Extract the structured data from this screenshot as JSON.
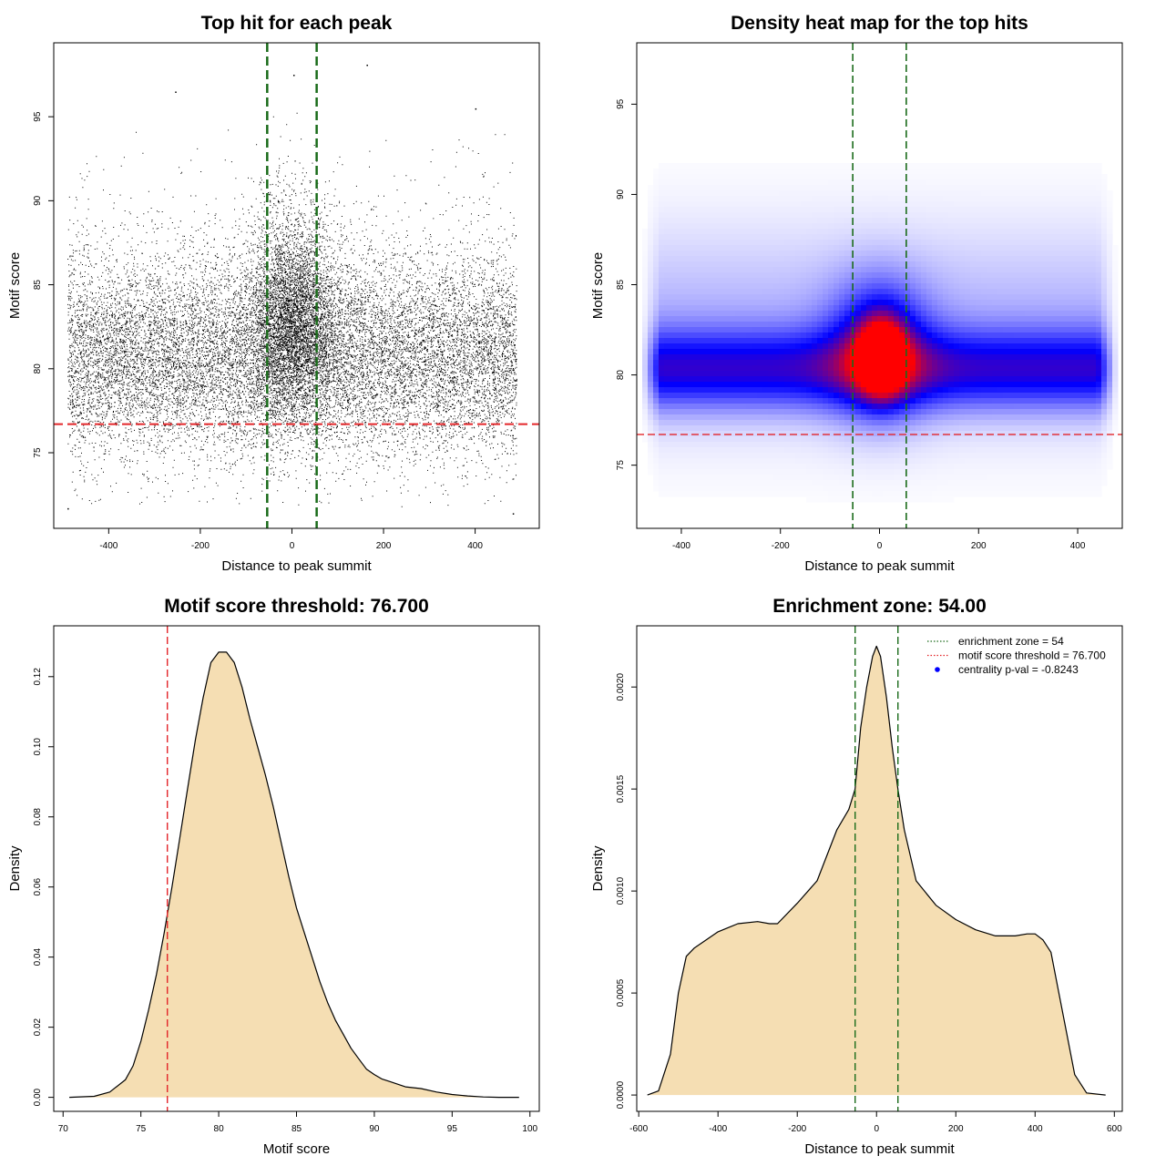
{
  "colors": {
    "threshold_line": "#e3262a",
    "zone_line": "#1a6b1a",
    "density_fill": "#f5deb3",
    "heat_low": "#ffffff",
    "heat_mid": "#0000ff",
    "heat_high": "#ff0000",
    "legend_point": "#0000ff"
  },
  "chart_data": [
    {
      "type": "scatter",
      "title": "Top hit for each peak",
      "xlabel": "Distance to peak summit",
      "ylabel": "Motif score",
      "xlim": [
        -520,
        540
      ],
      "ylim": [
        70.5,
        99.4
      ],
      "xticks": [
        -400,
        -200,
        0,
        200,
        400
      ],
      "yticks": [
        75,
        80,
        85,
        90,
        95
      ],
      "x_range_points": [
        -490,
        490
      ],
      "score_distribution": {
        "background_mode": 80.5,
        "central_mode": 82.5,
        "central_width": 50
      },
      "threshold": 76.7,
      "zone": [
        -54,
        54
      ],
      "extreme_points": [
        {
          "x": 163,
          "y": 98.1
        },
        {
          "x": 3,
          "y": 97.5
        },
        {
          "x": -255,
          "y": 96.5
        },
        {
          "x": 400,
          "y": 95.5
        },
        {
          "x": -490,
          "y": 71.7
        },
        {
          "x": 482,
          "y": 71.4
        }
      ]
    },
    {
      "type": "heatmap",
      "title": "Density heat map for the top hits",
      "xlabel": "Distance to peak summit",
      "ylabel": "Motif score",
      "xlim": [
        -490,
        490
      ],
      "ylim": [
        71.5,
        98.4
      ],
      "xticks": [
        -400,
        -200,
        0,
        200,
        400
      ],
      "yticks": [
        75,
        80,
        85,
        90,
        95
      ],
      "peak": {
        "x": 5,
        "y": 81
      },
      "threshold": 76.7,
      "zone": [
        -54,
        54
      ]
    },
    {
      "type": "area",
      "title": "Motif score threshold: 76.700",
      "xlabel": "Motif score",
      "ylabel": "Density",
      "xlim": [
        69.4,
        100.6
      ],
      "ylim": [
        -0.004,
        0.1345
      ],
      "xticks": [
        70,
        75,
        80,
        85,
        90,
        95,
        100
      ],
      "yticks": [
        0.0,
        0.02,
        0.04,
        0.06,
        0.08,
        0.1,
        0.12
      ],
      "ytick_labels": [
        "0.00",
        "0.02",
        "0.04",
        "0.06",
        "0.08",
        "0.10",
        "0.12"
      ],
      "threshold": 76.7,
      "x": [
        70.4,
        72,
        73,
        74,
        74.5,
        75,
        75.5,
        76,
        76.5,
        77,
        77.5,
        78,
        78.5,
        79,
        79.5,
        80,
        80.5,
        81,
        81.5,
        82,
        82.5,
        83,
        83.5,
        84,
        84.5,
        85,
        85.5,
        86,
        86.5,
        87,
        87.5,
        88,
        88.5,
        89,
        89.5,
        90,
        90.5,
        91,
        92,
        93,
        94,
        95,
        96,
        97,
        98,
        99.3
      ],
      "y": [
        0.0,
        0.0003,
        0.0015,
        0.005,
        0.009,
        0.016,
        0.025,
        0.035,
        0.047,
        0.06,
        0.074,
        0.088,
        0.102,
        0.114,
        0.124,
        0.127,
        0.127,
        0.124,
        0.117,
        0.108,
        0.1,
        0.092,
        0.083,
        0.073,
        0.063,
        0.054,
        0.047,
        0.04,
        0.033,
        0.027,
        0.022,
        0.018,
        0.014,
        0.011,
        0.008,
        0.0065,
        0.0052,
        0.0045,
        0.003,
        0.0025,
        0.0015,
        0.0008,
        0.0004,
        0.0001,
        0.0,
        0.0
      ]
    },
    {
      "type": "area",
      "title": "Enrichment zone: 54.00",
      "xlabel": "Distance to peak summit",
      "ylabel": "Density",
      "xlim": [
        -605,
        620
      ],
      "ylim": [
        -8e-05,
        0.0023
      ],
      "xticks": [
        -600,
        -400,
        -200,
        0,
        200,
        400,
        600
      ],
      "yticks": [
        0.0,
        0.0005,
        0.001,
        0.0015,
        0.002
      ],
      "ytick_labels": [
        "0.0000",
        "0.0005",
        "0.0010",
        "0.0015",
        "0.0020"
      ],
      "zone": [
        -54,
        54
      ],
      "x": [
        -578,
        -550,
        -520,
        -500,
        -480,
        -460,
        -430,
        -400,
        -350,
        -300,
        -270,
        -250,
        -200,
        -150,
        -100,
        -70,
        -54,
        -40,
        -25,
        -10,
        0,
        10,
        25,
        40,
        54,
        70,
        100,
        150,
        200,
        250,
        300,
        350,
        380,
        400,
        420,
        440,
        460,
        480,
        500,
        530,
        578
      ],
      "y": [
        0.0,
        2e-05,
        0.0002,
        0.0005,
        0.00068,
        0.00072,
        0.00076,
        0.0008,
        0.00084,
        0.00085,
        0.00084,
        0.00084,
        0.00094,
        0.00105,
        0.0013,
        0.0014,
        0.0015,
        0.0018,
        0.002,
        0.00215,
        0.0022,
        0.00215,
        0.00195,
        0.0017,
        0.0015,
        0.0013,
        0.00105,
        0.00093,
        0.00086,
        0.00081,
        0.00078,
        0.00078,
        0.00079,
        0.00079,
        0.00076,
        0.0007,
        0.0005,
        0.0003,
        0.0001,
        1e-05,
        0.0
      ],
      "legend": [
        {
          "label": "enrichment zone = 54",
          "style": "dotted",
          "color": "#1a6b1a"
        },
        {
          "label": "motif score threshold = 76.700",
          "style": "dotted",
          "color": "#e3262a"
        },
        {
          "label": "centrality p-val = -0.8243",
          "style": "point",
          "color": "#0000ff"
        }
      ],
      "legend_position": "top-right"
    }
  ]
}
